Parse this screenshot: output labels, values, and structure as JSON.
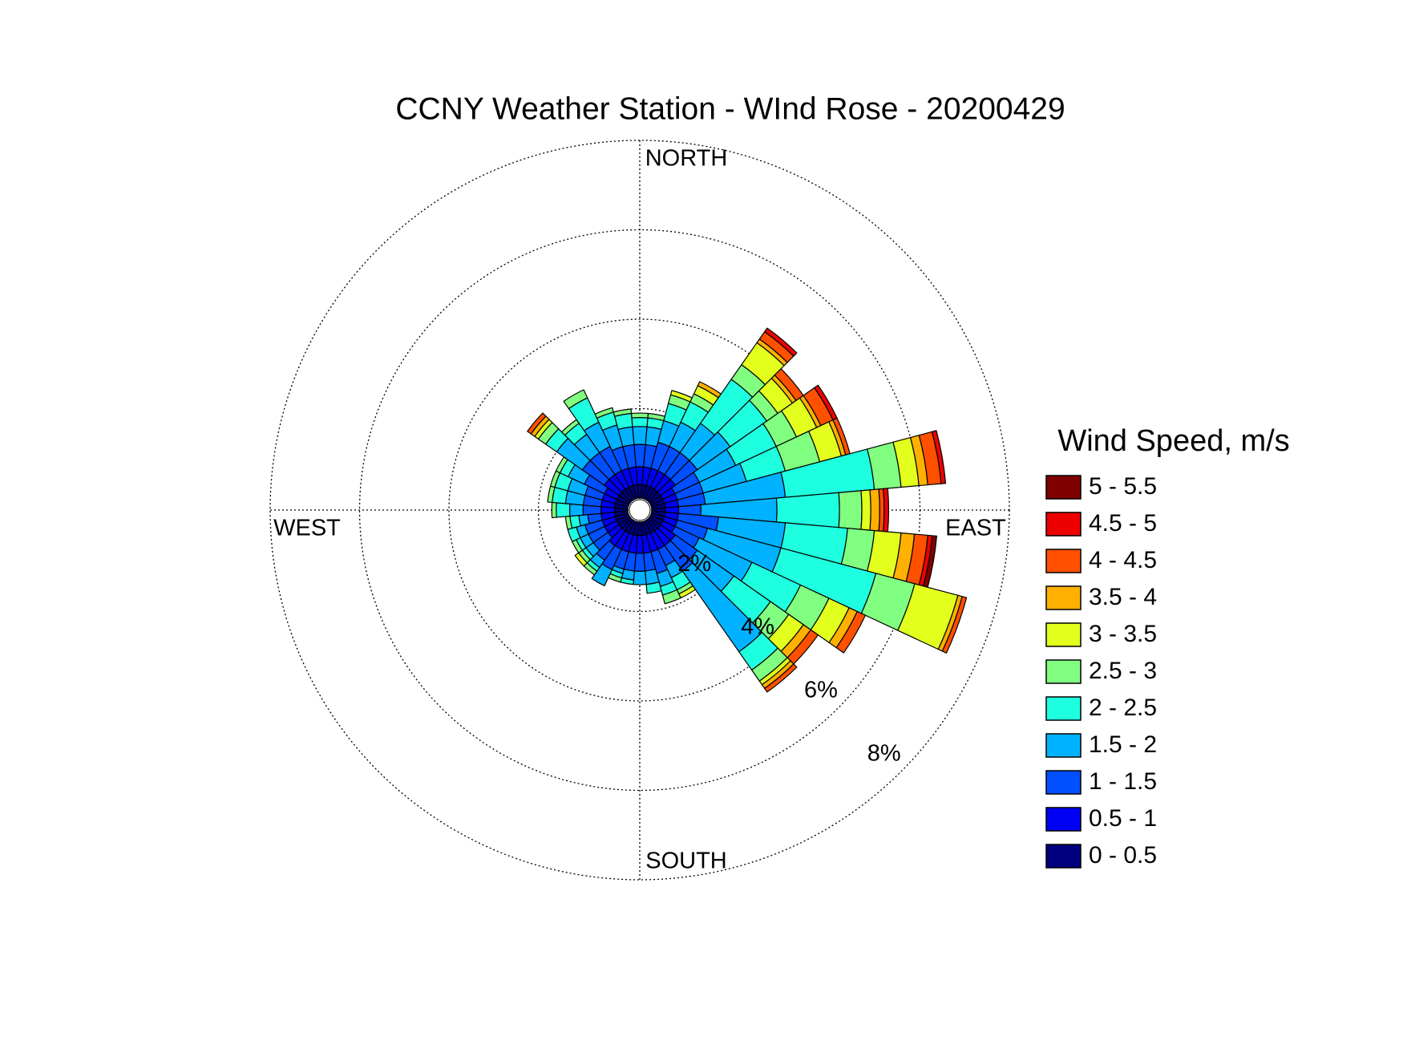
{
  "chart_data": {
    "type": "windrose",
    "title": "CCNY Weather Station - WInd Rose - 20200429",
    "direction_labels": [
      "NORTH",
      "EAST",
      "SOUTH",
      "WEST"
    ],
    "legend_title": "Wind Speed, m/s",
    "legend": "right",
    "rlim": [
      0,
      8
    ],
    "rticks": [
      {
        "value": 2,
        "label": "2%"
      },
      {
        "value": 4,
        "label": "4%"
      },
      {
        "value": 6,
        "label": "6%"
      },
      {
        "value": 8,
        "label": "8%"
      }
    ],
    "grid": true,
    "series": [
      {
        "name": "0 - 0.5",
        "color": "#000080",
        "values": [
          0.3,
          0.3,
          0.3,
          0.3,
          0.3,
          0.3,
          0.3,
          0.3,
          0.3,
          0.3,
          0.3,
          0.3,
          0.3,
          0.3,
          0.3,
          0.3,
          0.3,
          0.3,
          0.3,
          0.3,
          0.3,
          0.3,
          0.3,
          0.3,
          0.3,
          0.3,
          0.3,
          0.3,
          0.3,
          0.3,
          0.3,
          0.3,
          0.3,
          0.3,
          0.3,
          0.3
        ]
      },
      {
        "name": "0.5 - 1",
        "color": "#0000f5",
        "values": [
          0.4,
          0.4,
          0.4,
          0.4,
          0.4,
          0.4,
          0.3,
          0.3,
          0.3,
          0.3,
          0.3,
          0.3,
          0.3,
          0.4,
          0.4,
          0.4,
          0.4,
          0.4,
          0.4,
          0.4,
          0.4,
          0.4,
          0.4,
          0.3,
          0.3,
          0.3,
          0.3,
          0.3,
          0.3,
          0.3,
          0.3,
          0.4,
          0.4,
          0.4,
          0.4,
          0.4
        ]
      },
      {
        "name": "1 - 1.5",
        "color": "#0050ff",
        "values": [
          0.5,
          0.5,
          0.6,
          0.6,
          0.6,
          0.6,
          0.6,
          0.6,
          0.6,
          0.5,
          0.9,
          0.7,
          0.6,
          0.6,
          0.7,
          0.4,
          0.5,
          0.4,
          0.4,
          0.4,
          0.4,
          0.5,
          0.4,
          0.4,
          0.4,
          0.4,
          0.3,
          0.4,
          0.4,
          0.4,
          0.5,
          0.6,
          0.6,
          0.6,
          0.5,
          0.5
        ]
      },
      {
        "name": "1.5 - 2",
        "color": "#00b2ff",
        "values": [
          0.4,
          0.4,
          0.5,
          0.6,
          0.8,
          0.9,
          0.9,
          1.0,
          1.8,
          1.7,
          1.5,
          1.7,
          1.3,
          1.0,
          2.2,
          0.3,
          0.3,
          0.3,
          0.3,
          0.2,
          0.1,
          0.4,
          0.2,
          0.2,
          0.2,
          0.2,
          0.2,
          0.3,
          0.4,
          0.4,
          0.4,
          0.7,
          0.5,
          0.6,
          0.5,
          0.4
        ]
      },
      {
        "name": "2 - 2.5",
        "color": "#1effe0",
        "values": [
          0.2,
          0.2,
          0.4,
          0.5,
          1.2,
          1.0,
          1.0,
          0.9,
          2.0,
          1.4,
          1.4,
          2.2,
          1.2,
          1.0,
          0.5,
          0.3,
          0.2,
          0.2,
          0,
          0.1,
          0.1,
          0,
          0.1,
          0.1,
          0.1,
          0.2,
          0.2,
          0.3,
          0.3,
          0.3,
          0.2,
          0.3,
          0.3,
          0.6,
          0.3,
          0.3
        ]
      },
      {
        "name": "2.5 - 3",
        "color": "#80ff80",
        "values": [
          0.1,
          0.1,
          0.2,
          0.2,
          0.4,
          0.3,
          0.5,
          0.8,
          0.6,
          0.5,
          0.6,
          0.9,
          0.7,
          0.5,
          0.3,
          0.1,
          0.2,
          0,
          0,
          0,
          0.1,
          0,
          0.1,
          0.1,
          0.1,
          0,
          0.1,
          0.1,
          0.1,
          0.1,
          0.1,
          0.2,
          0.1,
          0.2,
          0.1,
          0.1
        ]
      },
      {
        "name": "3 - 3.5",
        "color": "#e2ff1e",
        "values": [
          0,
          0,
          0.1,
          0.2,
          0.6,
          0.4,
          0.5,
          0.5,
          0.4,
          0.2,
          0.6,
          1.0,
          0.5,
          0.4,
          0.1,
          0.1,
          0,
          0,
          0,
          0,
          0,
          0,
          0,
          0.1,
          0,
          0,
          0,
          0,
          0,
          0,
          0,
          0.1,
          0,
          0,
          0,
          0
        ]
      },
      {
        "name": "3.5 - 4",
        "color": "#ffb000",
        "values": [
          0,
          0,
          0,
          0.1,
          0.1,
          0.1,
          0.1,
          0.1,
          0.2,
          0.2,
          0.3,
          0.1,
          0.2,
          0.2,
          0.1,
          0,
          0,
          0,
          0,
          0,
          0,
          0,
          0,
          0,
          0,
          0,
          0,
          0,
          0,
          0,
          0,
          0.1,
          0,
          0,
          0,
          0
        ]
      },
      {
        "name": "4 - 4.5",
        "color": "#ff5000",
        "values": [
          0,
          0,
          0,
          0,
          0.2,
          0.2,
          0.3,
          0.1,
          0.3,
          0.1,
          0.3,
          0.1,
          0.2,
          0.2,
          0.1,
          0,
          0,
          0,
          0,
          0,
          0,
          0,
          0,
          0,
          0,
          0,
          0,
          0,
          0,
          0,
          0,
          0.1,
          0,
          0,
          0,
          0
        ]
      },
      {
        "name": "4.5 - 5",
        "color": "#ee0000",
        "values": [
          0,
          0,
          0,
          0,
          0.1,
          0,
          0.1,
          0,
          0.1,
          0.1,
          0.1,
          0,
          0,
          0,
          0,
          0,
          0,
          0,
          0,
          0,
          0,
          0,
          0,
          0,
          0,
          0,
          0,
          0,
          0,
          0,
          0,
          0,
          0,
          0,
          0,
          0
        ]
      },
      {
        "name": "5 - 5.5",
        "color": "#800000",
        "values": [
          0,
          0,
          0,
          0,
          0,
          0,
          0,
          0,
          0,
          0,
          0.1,
          0,
          0,
          0,
          0,
          0,
          0,
          0,
          0,
          0,
          0,
          0,
          0,
          0,
          0,
          0,
          0,
          0,
          0,
          0,
          0,
          0,
          0,
          0,
          0,
          0
        ]
      }
    ]
  }
}
